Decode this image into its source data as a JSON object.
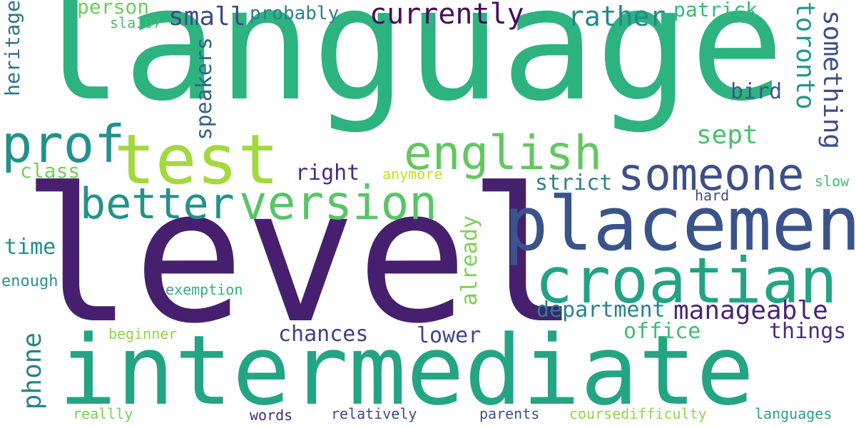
{
  "words": {
    "language": {
      "text": "language",
      "color": "#2db37f"
    },
    "level": {
      "text": "level",
      "color": "#46206f"
    },
    "intermediate": {
      "text": "intermediate",
      "color": "#23a583"
    },
    "placement": {
      "text": "placement",
      "color": "#3b538b"
    },
    "croatian": {
      "text": "croatian",
      "color": "#22a384"
    },
    "test": {
      "text": "test",
      "color": "#a2d93c"
    },
    "prof": {
      "text": "prof",
      "color": "#21918c"
    },
    "english": {
      "text": "english",
      "color": "#63c75f"
    },
    "someone": {
      "text": "someone",
      "color": "#3b4f8a"
    },
    "better": {
      "text": "better",
      "color": "#23928a"
    },
    "version": {
      "text": "version",
      "color": "#57c567"
    },
    "currently": {
      "text": "currently",
      "color": "#450f5f"
    },
    "small": {
      "text": "small",
      "color": "#3e4a89"
    },
    "probably": {
      "text": "probably",
      "color": "#2c7f8e"
    },
    "person": {
      "text": "person",
      "color": "#6ccd5a"
    },
    "sla107": {
      "text": "sla107",
      "color": "#3fbd70"
    },
    "rather": {
      "text": "rather",
      "color": "#23878d"
    },
    "patrick": {
      "text": "patrick",
      "color": "#36b878"
    },
    "toronto": {
      "text": "toronto",
      "color": "#22998a"
    },
    "something": {
      "text": "something",
      "color": "#3d4e8a"
    },
    "heritage": {
      "text": "heritage",
      "color": "#2c728e"
    },
    "speakers": {
      "text": "speakers",
      "color": "#32648e"
    },
    "bird": {
      "text": "bird",
      "color": "#3d578c"
    },
    "sept": {
      "text": "sept",
      "color": "#49c16d"
    },
    "class": {
      "text": "class",
      "color": "#74d055"
    },
    "right": {
      "text": "right",
      "color": "#472d7b"
    },
    "anymore": {
      "text": "anymore",
      "color": "#c2df23"
    },
    "strict": {
      "text": "strict",
      "color": "#2d7f8e"
    },
    "hard": {
      "text": "hard",
      "color": "#3e4c8a"
    },
    "slow": {
      "text": "slow",
      "color": "#3fbc72"
    },
    "time": {
      "text": "time",
      "color": "#21908d"
    },
    "already": {
      "text": "already",
      "color": "#7ad151"
    },
    "enough": {
      "text": "enough",
      "color": "#2b918c"
    },
    "exemption": {
      "text": "exemption",
      "color": "#2db27d"
    },
    "department": {
      "text": "department",
      "color": "#25828e"
    },
    "manageable": {
      "text": "manageable",
      "color": "#482475"
    },
    "beginner": {
      "text": "beginner",
      "color": "#8ed645"
    },
    "phone": {
      "text": "phone",
      "color": "#25838e"
    },
    "chances": {
      "text": "chances",
      "color": "#433e85"
    },
    "lower": {
      "text": "lower",
      "color": "#404588"
    },
    "office": {
      "text": "office",
      "color": "#41be71"
    },
    "things": {
      "text": "things",
      "color": "#46307e"
    },
    "reallly": {
      "text": "reallly",
      "color": "#7ad151"
    },
    "words": {
      "text": "words",
      "color": "#472c7a"
    },
    "relatively": {
      "text": "relatively",
      "color": "#3e4989"
    },
    "parents": {
      "text": "parents",
      "color": "#3b528b"
    },
    "coursedifficulty": {
      "text": "coursedifficulty",
      "color": "#8fd744"
    },
    "languages": {
      "text": "languages",
      "color": "#2ea07f"
    }
  }
}
